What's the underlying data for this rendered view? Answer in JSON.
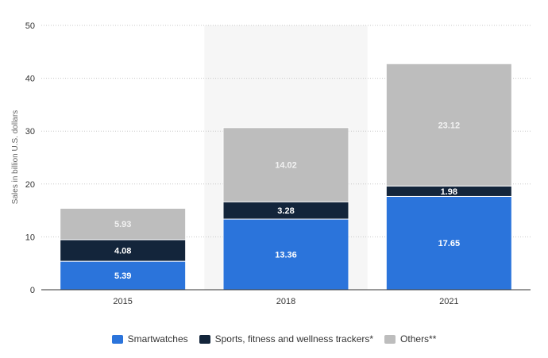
{
  "chart_data": {
    "type": "bar",
    "stacked": true,
    "categories": [
      "2015",
      "2018",
      "2021"
    ],
    "series": [
      {
        "name": "Smartwatches",
        "color": "#2b74db",
        "values": [
          5.39,
          13.36,
          17.65
        ]
      },
      {
        "name": "Sports, fitness and wellness trackers*",
        "color": "#13253b",
        "values": [
          4.08,
          3.28,
          1.98
        ]
      },
      {
        "name": "Others**",
        "color": "#bdbdbd",
        "values": [
          5.93,
          14.02,
          23.12
        ]
      }
    ],
    "data_labels": [
      [
        "5.39",
        "13.36",
        "17.65"
      ],
      [
        "4.08",
        "3.28",
        "1.98"
      ],
      [
        "5.93",
        "14.02",
        "23.12"
      ]
    ],
    "ylabel": "Sales in billion U.S. dollars",
    "ylim": [
      0,
      50
    ],
    "yticks": [
      "0",
      "10",
      "20",
      "30",
      "40",
      "50"
    ],
    "grid": true,
    "highlighted_category": "2018",
    "legend_position": "bottom-center"
  }
}
